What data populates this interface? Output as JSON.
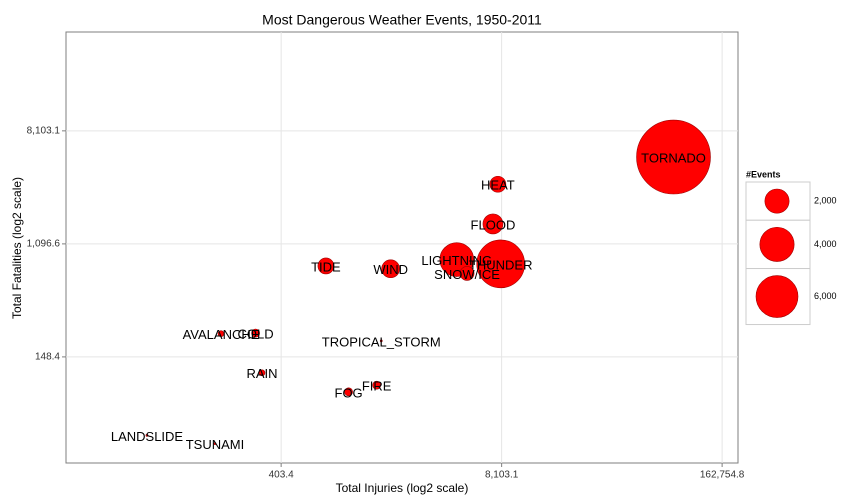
{
  "chart_data": {
    "type": "scatter",
    "title": "Most Dangerous Weather Events, 1950-2011",
    "xlabel": "Total Injuries (log2 scale)",
    "ylabel": "Total Fatalities (log2 scale)",
    "xscale": "log",
    "yscale": "log",
    "labels": [
      "TORNADO",
      "HEAT",
      "FLOOD",
      "LIGHTNING",
      "THUNDER",
      "SNOW/ICE",
      "WIND",
      "TIDE",
      "COLD",
      "AVALANCHE",
      "TROPICAL_STORM",
      "RAIN",
      "FIRE",
      "FOG",
      "LANDSLIDE",
      "TSUNAMI"
    ],
    "x": [
      84000,
      7700,
      7200,
      4400,
      8000,
      5060,
      1790,
      742,
      285,
      178,
      1575,
      311,
      1480,
      1010,
      65,
      164
    ],
    "values": [
      5100,
      3150,
      1560,
      830,
      770,
      650,
      706,
      742,
      226,
      224,
      197,
      112,
      90,
      80,
      37,
      32
    ],
    "sizes": [
      18600,
      870,
      1360,
      3900,
      7800,
      670,
      1100,
      870,
      220,
      120,
      15,
      120,
      220,
      220,
      15,
      15
    ],
    "color": "#ff0000",
    "xlim": [
      21.6,
      202000
    ],
    "ylim": [
      22.7,
      46600
    ],
    "xticks": [
      {
        "value": 403.4,
        "label": "403.4"
      },
      {
        "value": 8103.1,
        "label": "8,103.1"
      },
      {
        "value": 162754.8,
        "label": "162,754.8"
      }
    ],
    "yticks": [
      {
        "value": 148.4,
        "label": "148.4"
      },
      {
        "value": 1096.6,
        "label": "1,096.6"
      },
      {
        "value": 8103.1,
        "label": "8,103.1"
      }
    ],
    "grid": true,
    "legend": {
      "position": "right",
      "title": "#Events",
      "sizes": [
        {
          "value": 2000,
          "label": "2,000"
        },
        {
          "value": 4000,
          "label": "4,000"
        },
        {
          "value": 6000,
          "label": "6,000"
        }
      ]
    }
  }
}
